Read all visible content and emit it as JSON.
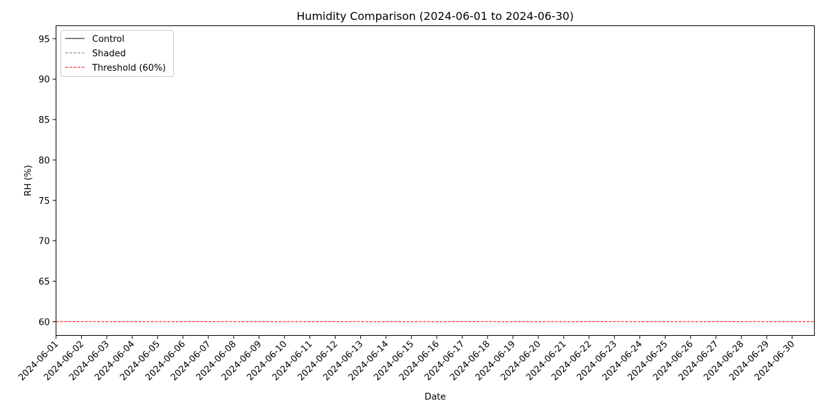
{
  "chart_data": {
    "type": "line",
    "title": "Humidity Comparison (2024-06-01 to 2024-06-30)",
    "xlabel": "Date",
    "ylabel": "RH (%)",
    "x_categories": [
      "2024-06-01",
      "2024-06-02",
      "2024-06-03",
      "2024-06-04",
      "2024-06-05",
      "2024-06-06",
      "2024-06-07",
      "2024-06-08",
      "2024-06-09",
      "2024-06-10",
      "2024-06-11",
      "2024-06-12",
      "2024-06-13",
      "2024-06-14",
      "2024-06-15",
      "2024-06-16",
      "2024-06-17",
      "2024-06-18",
      "2024-06-19",
      "2024-06-20",
      "2024-06-21",
      "2024-06-22",
      "2024-06-23",
      "2024-06-24",
      "2024-06-25",
      "2024-06-26",
      "2024-06-27",
      "2024-06-28",
      "2024-06-29",
      "2024-06-30"
    ],
    "xlim": [
      "2024-06-01",
      "2024-07-01"
    ],
    "ylim": [
      58.3,
      96.6
    ],
    "yticks": [
      60,
      65,
      70,
      75,
      80,
      85,
      90,
      95
    ],
    "grid": false,
    "legend_position": "top-left",
    "series": [
      {
        "name": "Control",
        "color": "#000000",
        "style": "solid",
        "values": []
      },
      {
        "name": "Shaded",
        "color": "#808080",
        "style": "dashed",
        "values": []
      }
    ],
    "reference_lines": [
      {
        "name": "Threshold (60%)",
        "y": 60,
        "color": "#ff0000",
        "style": "dashed"
      }
    ]
  }
}
